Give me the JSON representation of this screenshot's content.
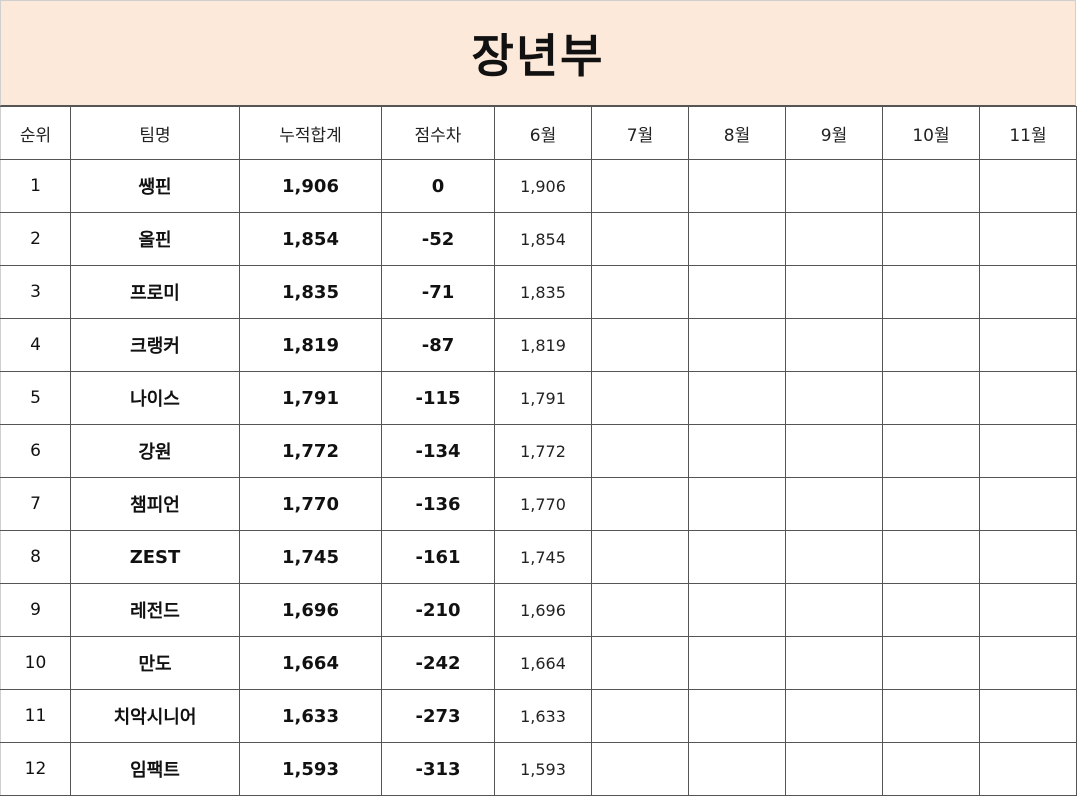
{
  "title": "장년부",
  "headers": [
    "순위",
    "팀명",
    "누적합계",
    "점수차",
    "6월",
    "7월",
    "8월",
    "9월",
    "10월",
    "11월"
  ],
  "rows": [
    {
      "rank": "1",
      "team": "쌩핀",
      "total": "1,906",
      "diff": "0",
      "jun": "1,906",
      "jul": "",
      "aug": "",
      "sep": "",
      "oct": "",
      "nov": ""
    },
    {
      "rank": "2",
      "team": "올핀",
      "total": "1,854",
      "diff": "-52",
      "jun": "1,854",
      "jul": "",
      "aug": "",
      "sep": "",
      "oct": "",
      "nov": ""
    },
    {
      "rank": "3",
      "team": "프로미",
      "total": "1,835",
      "diff": "-71",
      "jun": "1,835",
      "jul": "",
      "aug": "",
      "sep": "",
      "oct": "",
      "nov": ""
    },
    {
      "rank": "4",
      "team": "크랭커",
      "total": "1,819",
      "diff": "-87",
      "jun": "1,819",
      "jul": "",
      "aug": "",
      "sep": "",
      "oct": "",
      "nov": ""
    },
    {
      "rank": "5",
      "team": "나이스",
      "total": "1,791",
      "diff": "-115",
      "jun": "1,791",
      "jul": "",
      "aug": "",
      "sep": "",
      "oct": "",
      "nov": ""
    },
    {
      "rank": "6",
      "team": "강원",
      "total": "1,772",
      "diff": "-134",
      "jun": "1,772",
      "jul": "",
      "aug": "",
      "sep": "",
      "oct": "",
      "nov": ""
    },
    {
      "rank": "7",
      "team": "챔피언",
      "total": "1,770",
      "diff": "-136",
      "jun": "1,770",
      "jul": "",
      "aug": "",
      "sep": "",
      "oct": "",
      "nov": ""
    },
    {
      "rank": "8",
      "team": "ZEST",
      "total": "1,745",
      "diff": "-161",
      "jun": "1,745",
      "jul": "",
      "aug": "",
      "sep": "",
      "oct": "",
      "nov": ""
    },
    {
      "rank": "9",
      "team": "레전드",
      "total": "1,696",
      "diff": "-210",
      "jun": "1,696",
      "jul": "",
      "aug": "",
      "sep": "",
      "oct": "",
      "nov": ""
    },
    {
      "rank": "10",
      "team": "만도",
      "total": "1,664",
      "diff": "-242",
      "jun": "1,664",
      "jul": "",
      "aug": "",
      "sep": "",
      "oct": "",
      "nov": ""
    },
    {
      "rank": "11",
      "team": "치악시니어",
      "total": "1,633",
      "diff": "-273",
      "jun": "1,633",
      "jul": "",
      "aug": "",
      "sep": "",
      "oct": "",
      "nov": ""
    },
    {
      "rank": "12",
      "team": "임팩트",
      "total": "1,593",
      "diff": "-313",
      "jun": "1,593",
      "jul": "",
      "aug": "",
      "sep": "",
      "oct": "",
      "nov": ""
    }
  ],
  "colors": {
    "title_background": "#fde9da",
    "grid_line": "#555555"
  }
}
